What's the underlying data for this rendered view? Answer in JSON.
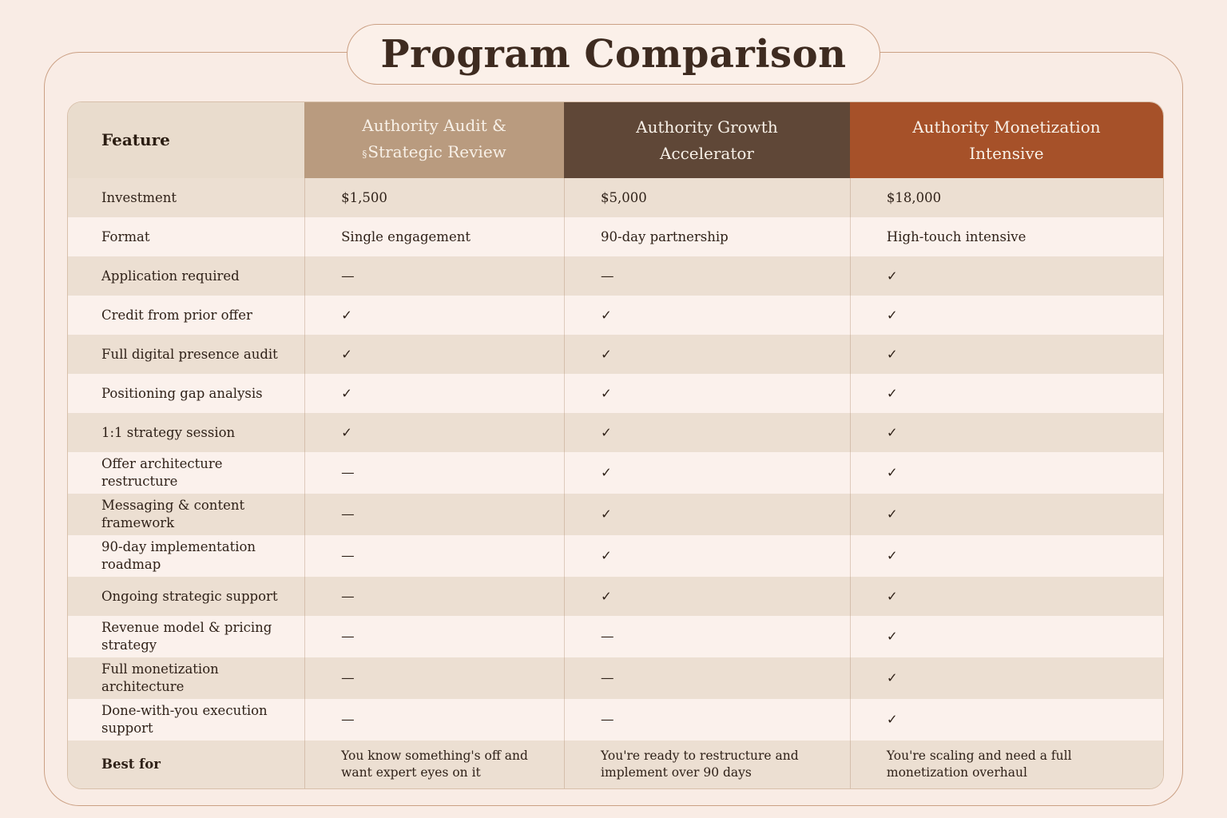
{
  "title": "Program Comparison",
  "header": {
    "programs": [
      {
        "line1": "Authority Audit &",
        "line2_prefix": "§",
        "line2": "Strategic Review"
      },
      {
        "line1": "Authority Growth",
        "line2_prefix": "",
        "line2": "Accelerator"
      },
      {
        "line1": "Authority Monetization",
        "line2_prefix": "",
        "line2": "Intensive"
      }
    ]
  },
  "colors": {
    "page_bg": "#f9ece5",
    "frame_border": "#cba084",
    "pill_bg": "#fbf0e9",
    "title_text": "#3e2b20",
    "feature_header_bg": "#e9dccd",
    "audit_header_bg": "#b99b7f",
    "growth_header_bg": "#5f4737",
    "monetization_header_bg": "#a65129",
    "header_text": "#f8f1e8",
    "row_light": "#fbf1ec",
    "row_dark": "#ecdfd2",
    "cell_text": "#2f2118"
  },
  "chart_data": {
    "type": "table",
    "title": "Program Comparison",
    "columns": [
      "Feature",
      "Authority Audit & Strategic Review",
      "Authority Growth Accelerator",
      "Authority Monetization Intensive"
    ],
    "rows": [
      {
        "feature": "Investment",
        "values": [
          "$1,500",
          "$5,000",
          "$18,000"
        ]
      },
      {
        "feature": "Format",
        "values": [
          "Single engagement",
          "90-day partnership",
          "High-touch intensive"
        ]
      },
      {
        "feature": "Application required",
        "values": [
          "—",
          "—",
          "✓"
        ]
      },
      {
        "feature": "Credit from prior offer",
        "values": [
          "✓",
          "✓",
          "✓"
        ]
      },
      {
        "feature": "Full digital presence audit",
        "values": [
          "✓",
          "✓",
          "✓"
        ]
      },
      {
        "feature": "Positioning gap analysis",
        "values": [
          "✓",
          "✓",
          "✓"
        ]
      },
      {
        "feature": "1:1 strategy session",
        "values": [
          "✓",
          "✓",
          "✓"
        ]
      },
      {
        "feature": "Offer architecture restructure",
        "values": [
          "—",
          "✓",
          "✓"
        ]
      },
      {
        "feature": "Messaging & content\nframework",
        "values": [
          "—",
          "✓",
          "✓"
        ]
      },
      {
        "feature": "90-day implementation\nroadmap",
        "values": [
          "—",
          "✓",
          "✓"
        ]
      },
      {
        "feature": "Ongoing strategic support",
        "values": [
          "—",
          "✓",
          "✓"
        ]
      },
      {
        "feature": "Revenue model & pricing\nstrategy",
        "values": [
          "—",
          "—",
          "✓"
        ]
      },
      {
        "feature": "Full monetization architecture",
        "values": [
          "—",
          "—",
          "✓"
        ]
      },
      {
        "feature": "Done-with-you execution\nsupport",
        "values": [
          "—",
          "—",
          "✓"
        ]
      },
      {
        "feature": "Best for",
        "values": [
          "You know something's off and\nwant expert eyes on it",
          "You're ready to restructure and\nimplement over 90 days",
          "You're scaling and need a full\nmonetization overhaul"
        ]
      }
    ]
  }
}
